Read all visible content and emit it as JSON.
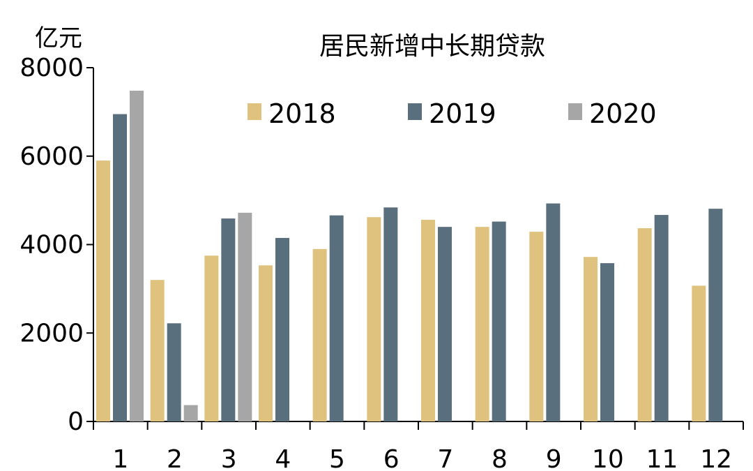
{
  "chart_data": {
    "type": "bar",
    "title": "居民新增中长期贷款",
    "ylabel": "亿元",
    "xlabel": "",
    "ylim": [
      0,
      8000
    ],
    "yticks": [
      0,
      2000,
      4000,
      6000,
      8000
    ],
    "categories": [
      "1",
      "2",
      "3",
      "4",
      "5",
      "6",
      "7",
      "8",
      "9",
      "10",
      "11",
      "12"
    ],
    "legend_position": "top-center",
    "grid": false,
    "series": [
      {
        "name": "2018",
        "color": "#dfc27d",
        "values": [
          5900,
          3200,
          3750,
          3530,
          3900,
          4620,
          4560,
          4400,
          4290,
          3720,
          4370,
          3070
        ]
      },
      {
        "name": "2019",
        "color": "#5a6f7d",
        "values": [
          6950,
          2220,
          4590,
          4150,
          4660,
          4840,
          4400,
          4520,
          4930,
          3580,
          4670,
          4810
        ]
      },
      {
        "name": "2020",
        "color": "#a6a6a6",
        "values": [
          7480,
          370,
          4720,
          null,
          null,
          null,
          null,
          null,
          null,
          null,
          null,
          null
        ]
      }
    ]
  }
}
